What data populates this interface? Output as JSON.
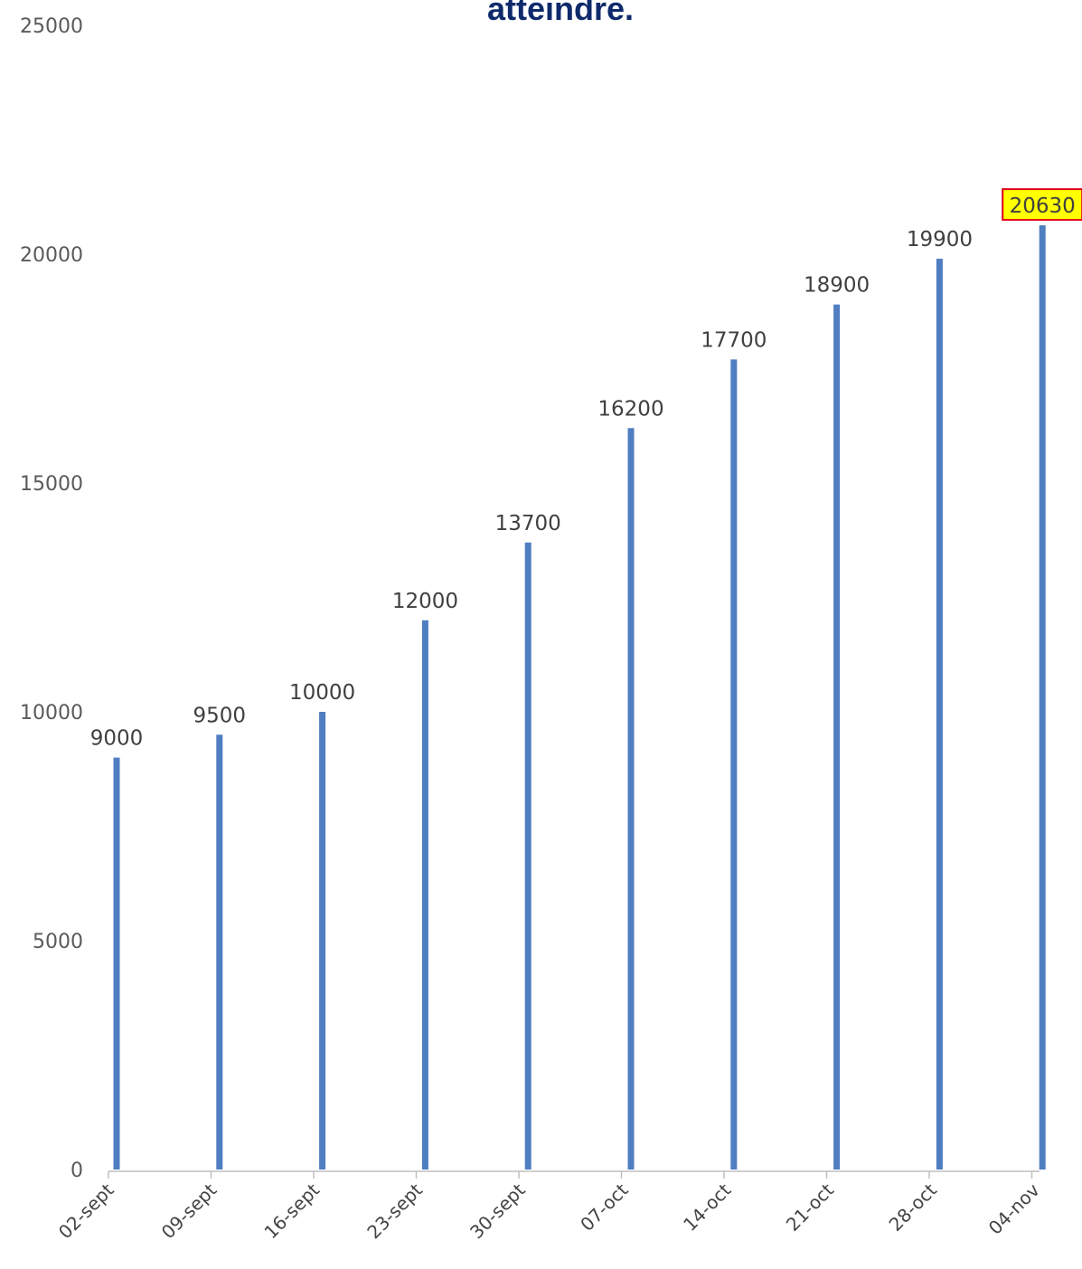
{
  "colors": {
    "bar": "#4f7ec1",
    "title": "#0f2a6b",
    "highlight_fill": "#ffff00",
    "highlight_border": "#e0001a",
    "axis": "#bfbfbf"
  },
  "chart_data": {
    "type": "bar",
    "title": "atteindre.",
    "xlabel": "",
    "ylabel": "",
    "ylim": [
      0,
      25000
    ],
    "yticks": [
      0,
      5000,
      10000,
      15000,
      20000,
      25000
    ],
    "categories": [
      "02-sept",
      "09-sept",
      "16-sept",
      "23-sept",
      "30-sept",
      "07-oct",
      "14-oct",
      "21-oct",
      "28-oct",
      "04-nov"
    ],
    "series": [
      {
        "values": [
          9000,
          9500,
          10000,
          12000,
          13700,
          16200,
          17700,
          18900,
          19900,
          20630
        ]
      }
    ],
    "highlighted_label": "04-nov",
    "grid": false,
    "legend": "none"
  }
}
